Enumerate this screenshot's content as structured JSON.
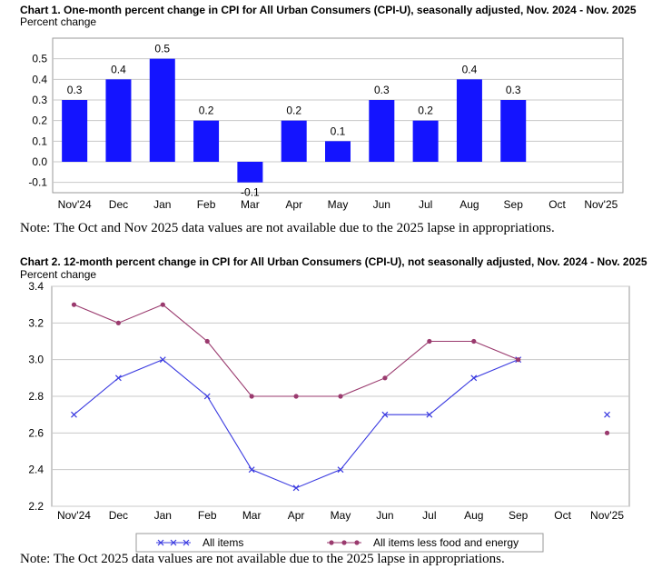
{
  "chart1": {
    "title": "Chart 1. One-month percent change in CPI for All Urban Consumers (CPI-U), seasonally adjusted, Nov. 2024 - Nov. 2025",
    "ylabel": "Percent change",
    "note": "Note: The Oct and Nov 2025 data values are not available due to the 2025 lapse in appropriations."
  },
  "chart2": {
    "title": "Chart 2. 12-month percent change in CPI for All Urban Consumers (CPI-U), not seasonally adjusted, Nov. 2024 - Nov. 2025",
    "ylabel": "Percent change",
    "note": "Note: The Oct 2025 data values are not available due to the 2025 lapse in appropriations."
  },
  "chart_data": [
    {
      "type": "bar",
      "title": "Chart 1. One-month percent change in CPI for All Urban Consumers (CPI-U), seasonally adjusted, Nov. 2024 - Nov. 2025",
      "ylabel": "Percent change",
      "categories": [
        "Nov'24",
        "Dec",
        "Jan",
        "Feb",
        "Mar",
        "Apr",
        "May",
        "Jun",
        "Jul",
        "Aug",
        "Sep",
        "Oct",
        "Nov'25"
      ],
      "values": [
        0.3,
        0.4,
        0.5,
        0.2,
        -0.1,
        0.2,
        0.1,
        0.3,
        0.2,
        0.4,
        0.3,
        null,
        null
      ],
      "data_labels": [
        "0.3",
        "0.4",
        "0.5",
        "0.2",
        "-0.1",
        "0.2",
        "0.1",
        "0.3",
        "0.2",
        "0.4",
        "0.3",
        "",
        ""
      ],
      "yticks": [
        "-0.1",
        "0.0",
        "0.1",
        "0.2",
        "0.3",
        "0.4",
        "0.5"
      ],
      "ylim": [
        -0.15,
        0.6
      ],
      "grid": true,
      "color": "#1414ff"
    },
    {
      "type": "line",
      "title": "Chart 2. 12-month percent change in CPI for All Urban Consumers (CPI-U), not seasonally adjusted, Nov. 2024 - Nov. 2025",
      "ylabel": "Percent change",
      "categories": [
        "Nov'24",
        "Dec",
        "Jan",
        "Feb",
        "Mar",
        "Apr",
        "May",
        "Jun",
        "Jul",
        "Aug",
        "Sep",
        "Oct",
        "Nov'25"
      ],
      "yticks": [
        "2.2",
        "2.4",
        "2.6",
        "2.8",
        "3.0",
        "3.2",
        "3.4"
      ],
      "ylim": [
        2.2,
        3.4
      ],
      "grid": true,
      "legend_position": "bottom",
      "series": [
        {
          "name": "All items",
          "color": "#3a3ae0",
          "marker": "x",
          "values": [
            2.7,
            2.9,
            3.0,
            2.8,
            2.4,
            2.3,
            2.4,
            2.7,
            2.7,
            2.9,
            3.0,
            null,
            2.7
          ]
        },
        {
          "name": "All items less food and energy",
          "color": "#9a3a6e",
          "marker": "dot",
          "values": [
            3.3,
            3.2,
            3.3,
            3.1,
            2.8,
            2.8,
            2.8,
            2.9,
            3.1,
            3.1,
            3.0,
            null,
            2.6
          ]
        }
      ]
    }
  ]
}
